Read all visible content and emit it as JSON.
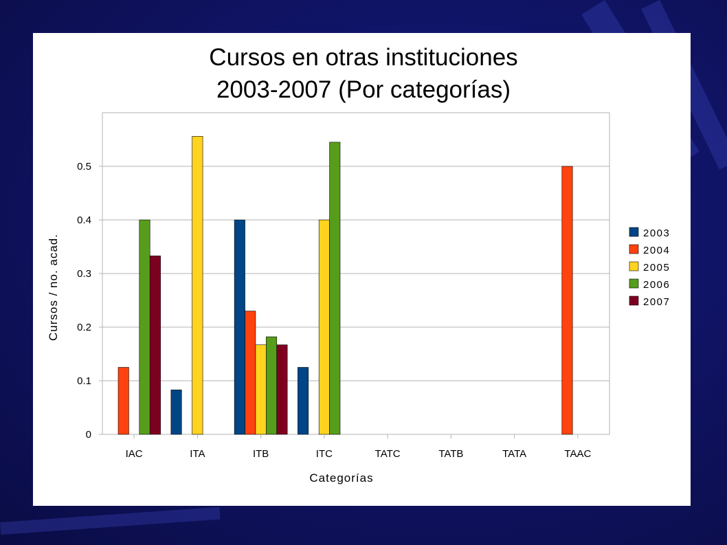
{
  "chart_data": {
    "type": "bar",
    "title_line1": "Cursos en otras instituciones",
    "title_line2": "2003-2007 (Por categorías)",
    "xlabel": "Categorías",
    "ylabel": "Cursos / no. acad.",
    "ylim": [
      0,
      0.6
    ],
    "yticks": [
      "0",
      "0.1",
      "0.2",
      "0.3",
      "0.4",
      "0.5"
    ],
    "grid": true,
    "legend_position": "right",
    "categories": [
      "IAC",
      "ITA",
      "ITB",
      "ITC",
      "TATC",
      "TATB",
      "TATA",
      "TAAC"
    ],
    "series": [
      {
        "name": "2003",
        "color": "#004586",
        "values": [
          0,
          0.083,
          0.4,
          0.125,
          0,
          0,
          0,
          0
        ]
      },
      {
        "name": "2004",
        "color": "#ff420e",
        "values": [
          0.125,
          0,
          0.23,
          0,
          0,
          0,
          0,
          0.5
        ]
      },
      {
        "name": "2005",
        "color": "#ffd320",
        "values": [
          0,
          0.556,
          0.167,
          0.4,
          0,
          0,
          0,
          0
        ]
      },
      {
        "name": "2006",
        "color": "#579d1c",
        "values": [
          0.4,
          0,
          0.182,
          0.545,
          0,
          0,
          0,
          0
        ]
      },
      {
        "name": "2007",
        "color": "#7e0021",
        "values": [
          0.333,
          0,
          0.167,
          0,
          0,
          0,
          0,
          0
        ]
      }
    ]
  }
}
